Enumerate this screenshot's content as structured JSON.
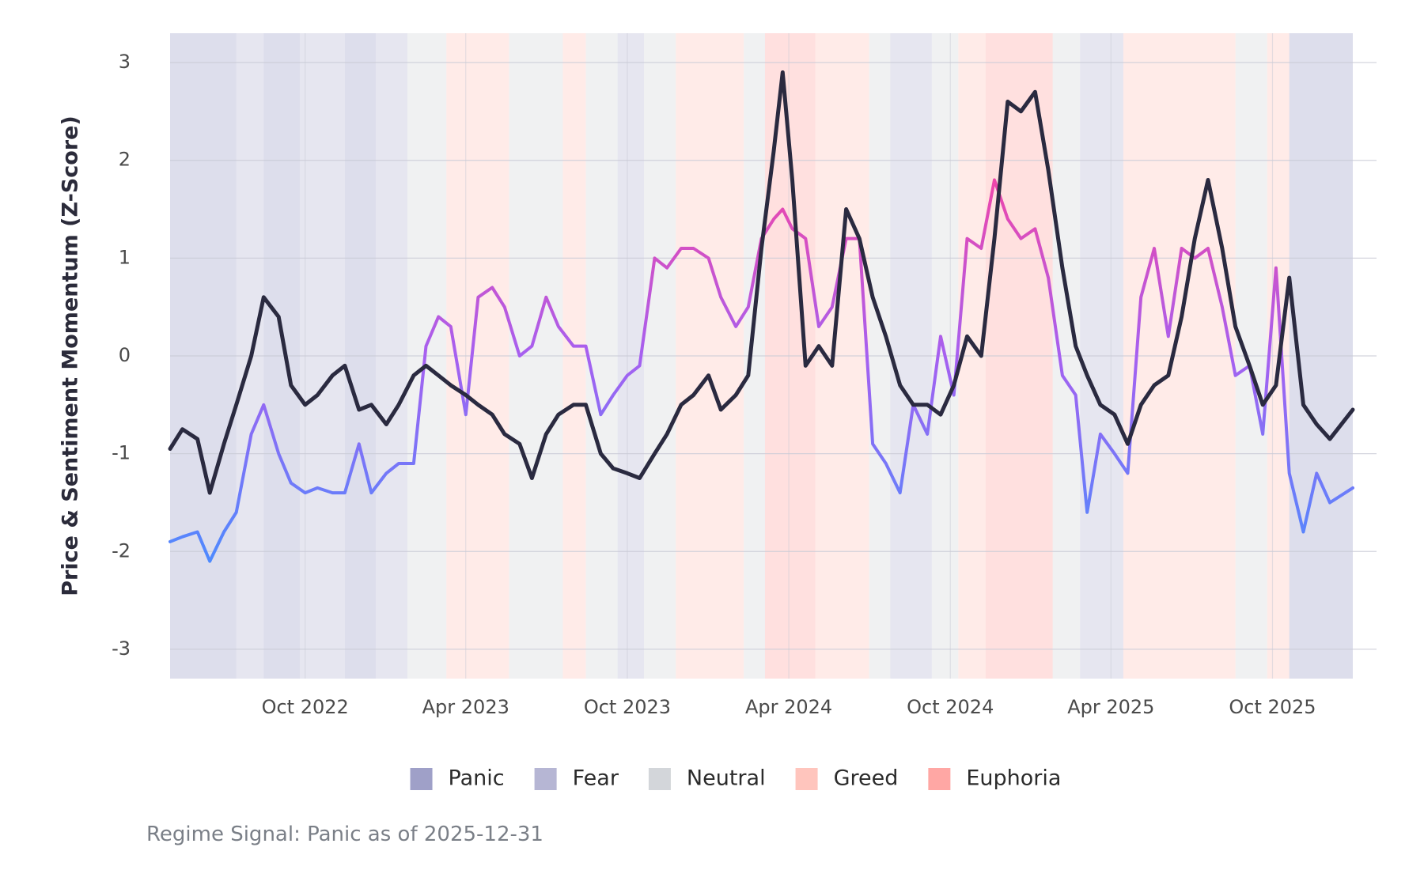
{
  "chart_data": {
    "type": "line",
    "title": "",
    "xlabel": "",
    "ylabel": "Price & Sentiment Momentum (Z-Score)",
    "caption": "Regime Signal: Panic as of 2025-12-31",
    "x_range": [
      "2022-05-01",
      "2025-12-31"
    ],
    "ylim": [
      -3.3,
      3.3
    ],
    "y_ticks": [
      -3,
      -2,
      -1,
      0,
      1,
      2,
      3
    ],
    "y_tick_labels": [
      "-3",
      "-2",
      "-1",
      "0",
      "1",
      "2",
      "3"
    ],
    "x_ticks": [
      {
        "date": "2022-10-01",
        "label": "Oct 2022"
      },
      {
        "date": "2023-04-01",
        "label": "Apr 2023"
      },
      {
        "date": "2023-10-01",
        "label": "Oct 2023"
      },
      {
        "date": "2024-04-01",
        "label": "Apr 2024"
      },
      {
        "date": "2024-10-01",
        "label": "Oct 2024"
      },
      {
        "date": "2025-04-01",
        "label": "Apr 2025"
      },
      {
        "date": "2025-10-01",
        "label": "Oct 2025"
      }
    ],
    "grid": true,
    "legend_position": "bottom",
    "regimes": [
      {
        "name": "Panic",
        "color": "#9fa0c8"
      },
      {
        "name": "Fear",
        "color": "#b6b6d4"
      },
      {
        "name": "Neutral",
        "color": "#d3d6da"
      },
      {
        "name": "Greed",
        "color": "#ffc5bd"
      },
      {
        "name": "Euphoria",
        "color": "#ffa7a4"
      }
    ],
    "regime_periods": [
      {
        "start": "2022-05-01",
        "end": "2022-07-15",
        "regime": "Panic"
      },
      {
        "start": "2022-07-15",
        "end": "2022-08-15",
        "regime": "Fear"
      },
      {
        "start": "2022-08-15",
        "end": "2022-09-25",
        "regime": "Panic"
      },
      {
        "start": "2022-09-25",
        "end": "2022-11-15",
        "regime": "Fear"
      },
      {
        "start": "2022-11-15",
        "end": "2022-12-20",
        "regime": "Panic"
      },
      {
        "start": "2022-12-20",
        "end": "2023-01-25",
        "regime": "Fear"
      },
      {
        "start": "2023-01-25",
        "end": "2023-03-10",
        "regime": "Neutral"
      },
      {
        "start": "2023-03-10",
        "end": "2023-05-20",
        "regime": "Greed"
      },
      {
        "start": "2023-05-20",
        "end": "2023-07-20",
        "regime": "Neutral"
      },
      {
        "start": "2023-07-20",
        "end": "2023-08-15",
        "regime": "Greed"
      },
      {
        "start": "2023-08-15",
        "end": "2023-09-20",
        "regime": "Neutral"
      },
      {
        "start": "2023-09-20",
        "end": "2023-10-20",
        "regime": "Fear"
      },
      {
        "start": "2023-10-20",
        "end": "2023-11-25",
        "regime": "Neutral"
      },
      {
        "start": "2023-11-25",
        "end": "2024-02-10",
        "regime": "Greed"
      },
      {
        "start": "2024-02-10",
        "end": "2024-03-05",
        "regime": "Neutral"
      },
      {
        "start": "2024-03-05",
        "end": "2024-05-01",
        "regime": "Euphoria"
      },
      {
        "start": "2024-05-01",
        "end": "2024-07-01",
        "regime": "Greed"
      },
      {
        "start": "2024-07-01",
        "end": "2024-07-25",
        "regime": "Neutral"
      },
      {
        "start": "2024-07-25",
        "end": "2024-09-10",
        "regime": "Fear"
      },
      {
        "start": "2024-09-10",
        "end": "2024-10-10",
        "regime": "Neutral"
      },
      {
        "start": "2024-10-10",
        "end": "2024-11-10",
        "regime": "Greed"
      },
      {
        "start": "2024-11-10",
        "end": "2025-01-25",
        "regime": "Euphoria"
      },
      {
        "start": "2025-01-25",
        "end": "2025-02-25",
        "regime": "Neutral"
      },
      {
        "start": "2025-02-25",
        "end": "2025-04-15",
        "regime": "Fear"
      },
      {
        "start": "2025-04-15",
        "end": "2025-08-20",
        "regime": "Greed"
      },
      {
        "start": "2025-08-20",
        "end": "2025-09-25",
        "regime": "Neutral"
      },
      {
        "start": "2025-09-25",
        "end": "2025-10-20",
        "regime": "Greed"
      },
      {
        "start": "2025-10-20",
        "end": "2025-12-31",
        "regime": "Panic"
      }
    ],
    "series": [
      {
        "color": "#2a2a40",
        "values": [
          [
            "2022-05-01",
            -0.95
          ],
          [
            "2022-05-15",
            -0.75
          ],
          [
            "2022-06-01",
            -0.85
          ],
          [
            "2022-06-15",
            -1.4
          ],
          [
            "2022-07-01",
            -0.9
          ],
          [
            "2022-07-15",
            -0.5
          ],
          [
            "2022-08-01",
            0.0
          ],
          [
            "2022-08-15",
            0.6
          ],
          [
            "2022-09-01",
            0.4
          ],
          [
            "2022-09-15",
            -0.3
          ],
          [
            "2022-10-01",
            -0.5
          ],
          [
            "2022-10-15",
            -0.4
          ],
          [
            "2022-11-01",
            -0.2
          ],
          [
            "2022-11-15",
            -0.1
          ],
          [
            "2022-12-01",
            -0.55
          ],
          [
            "2022-12-15",
            -0.5
          ],
          [
            "2023-01-01",
            -0.7
          ],
          [
            "2023-01-15",
            -0.5
          ],
          [
            "2023-02-01",
            -0.2
          ],
          [
            "2023-02-15",
            -0.1
          ],
          [
            "2023-03-01",
            -0.2
          ],
          [
            "2023-03-15",
            -0.3
          ],
          [
            "2023-04-01",
            -0.4
          ],
          [
            "2023-04-15",
            -0.5
          ],
          [
            "2023-05-01",
            -0.6
          ],
          [
            "2023-05-15",
            -0.8
          ],
          [
            "2023-06-01",
            -0.9
          ],
          [
            "2023-06-15",
            -1.25
          ],
          [
            "2023-07-01",
            -0.8
          ],
          [
            "2023-07-15",
            -0.6
          ],
          [
            "2023-08-01",
            -0.5
          ],
          [
            "2023-08-15",
            -0.5
          ],
          [
            "2023-09-01",
            -1.0
          ],
          [
            "2023-09-15",
            -1.15
          ],
          [
            "2023-10-01",
            -1.2
          ],
          [
            "2023-10-15",
            -1.25
          ],
          [
            "2023-11-01",
            -1.0
          ],
          [
            "2023-11-15",
            -0.8
          ],
          [
            "2023-12-01",
            -0.5
          ],
          [
            "2023-12-15",
            -0.4
          ],
          [
            "2024-01-01",
            -0.2
          ],
          [
            "2024-01-15",
            -0.55
          ],
          [
            "2024-02-01",
            -0.4
          ],
          [
            "2024-02-15",
            -0.2
          ],
          [
            "2024-03-01",
            1.1
          ],
          [
            "2024-03-15",
            2.1
          ],
          [
            "2024-03-25",
            2.9
          ],
          [
            "2024-04-05",
            1.8
          ],
          [
            "2024-04-20",
            -0.1
          ],
          [
            "2024-05-05",
            0.1
          ],
          [
            "2024-05-20",
            -0.1
          ],
          [
            "2024-06-05",
            1.5
          ],
          [
            "2024-06-20",
            1.2
          ],
          [
            "2024-07-05",
            0.6
          ],
          [
            "2024-07-20",
            0.2
          ],
          [
            "2024-08-05",
            -0.3
          ],
          [
            "2024-08-20",
            -0.5
          ],
          [
            "2024-09-05",
            -0.5
          ],
          [
            "2024-09-20",
            -0.6
          ],
          [
            "2024-10-05",
            -0.3
          ],
          [
            "2024-10-20",
            0.2
          ],
          [
            "2024-11-05",
            0.0
          ],
          [
            "2024-11-20",
            1.2
          ],
          [
            "2024-12-05",
            2.6
          ],
          [
            "2024-12-20",
            2.5
          ],
          [
            "2025-01-05",
            2.7
          ],
          [
            "2025-01-20",
            1.9
          ],
          [
            "2025-02-05",
            0.9
          ],
          [
            "2025-02-20",
            0.1
          ],
          [
            "2025-03-05",
            -0.2
          ],
          [
            "2025-03-20",
            -0.5
          ],
          [
            "2025-04-05",
            -0.6
          ],
          [
            "2025-04-20",
            -0.9
          ],
          [
            "2025-05-05",
            -0.5
          ],
          [
            "2025-05-20",
            -0.3
          ],
          [
            "2025-06-05",
            -0.2
          ],
          [
            "2025-06-20",
            0.4
          ],
          [
            "2025-07-05",
            1.2
          ],
          [
            "2025-07-20",
            1.8
          ],
          [
            "2025-08-05",
            1.1
          ],
          [
            "2025-08-20",
            0.3
          ],
          [
            "2025-09-05",
            -0.1
          ],
          [
            "2025-09-20",
            -0.5
          ],
          [
            "2025-10-05",
            -0.3
          ],
          [
            "2025-10-20",
            0.8
          ],
          [
            "2025-11-05",
            -0.5
          ],
          [
            "2025-11-20",
            -0.7
          ],
          [
            "2025-12-05",
            -0.85
          ],
          [
            "2025-12-31",
            -0.55
          ]
        ]
      },
      {
        "color": "#c050e0",
        "values": [
          [
            "2022-05-01",
            -1.9
          ],
          [
            "2022-05-15",
            -1.85
          ],
          [
            "2022-06-01",
            -1.8
          ],
          [
            "2022-06-15",
            -2.1
          ],
          [
            "2022-07-01",
            -1.8
          ],
          [
            "2022-07-15",
            -1.6
          ],
          [
            "2022-08-01",
            -0.8
          ],
          [
            "2022-08-15",
            -0.5
          ],
          [
            "2022-09-01",
            -1.0
          ],
          [
            "2022-09-15",
            -1.3
          ],
          [
            "2022-10-01",
            -1.4
          ],
          [
            "2022-10-15",
            -1.35
          ],
          [
            "2022-11-01",
            -1.4
          ],
          [
            "2022-11-15",
            -1.4
          ],
          [
            "2022-12-01",
            -0.9
          ],
          [
            "2022-12-15",
            -1.4
          ],
          [
            "2023-01-01",
            -1.2
          ],
          [
            "2023-01-15",
            -1.1
          ],
          [
            "2023-02-01",
            -1.1
          ],
          [
            "2023-02-15",
            0.1
          ],
          [
            "2023-03-01",
            0.4
          ],
          [
            "2023-03-15",
            0.3
          ],
          [
            "2023-04-01",
            -0.6
          ],
          [
            "2023-04-15",
            0.6
          ],
          [
            "2023-05-01",
            0.7
          ],
          [
            "2023-05-15",
            0.5
          ],
          [
            "2023-06-01",
            0.0
          ],
          [
            "2023-06-15",
            0.1
          ],
          [
            "2023-07-01",
            0.6
          ],
          [
            "2023-07-15",
            0.3
          ],
          [
            "2023-08-01",
            0.1
          ],
          [
            "2023-08-15",
            0.1
          ],
          [
            "2023-09-01",
            -0.6
          ],
          [
            "2023-09-15",
            -0.4
          ],
          [
            "2023-10-01",
            -0.2
          ],
          [
            "2023-10-15",
            -0.1
          ],
          [
            "2023-11-01",
            1.0
          ],
          [
            "2023-11-15",
            0.9
          ],
          [
            "2023-12-01",
            1.1
          ],
          [
            "2023-12-15",
            1.1
          ],
          [
            "2024-01-01",
            1.0
          ],
          [
            "2024-01-15",
            0.6
          ],
          [
            "2024-02-01",
            0.3
          ],
          [
            "2024-02-15",
            0.5
          ],
          [
            "2024-03-01",
            1.2
          ],
          [
            "2024-03-15",
            1.4
          ],
          [
            "2024-03-25",
            1.5
          ],
          [
            "2024-04-05",
            1.3
          ],
          [
            "2024-04-20",
            1.2
          ],
          [
            "2024-05-05",
            0.3
          ],
          [
            "2024-05-20",
            0.5
          ],
          [
            "2024-06-05",
            1.2
          ],
          [
            "2024-06-20",
            1.2
          ],
          [
            "2024-07-05",
            -0.9
          ],
          [
            "2024-07-20",
            -1.1
          ],
          [
            "2024-08-05",
            -1.4
          ],
          [
            "2024-08-20",
            -0.5
          ],
          [
            "2024-09-05",
            -0.8
          ],
          [
            "2024-09-20",
            0.2
          ],
          [
            "2024-10-05",
            -0.4
          ],
          [
            "2024-10-20",
            1.2
          ],
          [
            "2024-11-05",
            1.1
          ],
          [
            "2024-11-20",
            1.8
          ],
          [
            "2024-12-05",
            1.4
          ],
          [
            "2024-12-20",
            1.2
          ],
          [
            "2025-01-05",
            1.3
          ],
          [
            "2025-01-20",
            0.8
          ],
          [
            "2025-02-05",
            -0.2
          ],
          [
            "2025-02-20",
            -0.4
          ],
          [
            "2025-03-05",
            -1.6
          ],
          [
            "2025-03-20",
            -0.8
          ],
          [
            "2025-04-05",
            -1.0
          ],
          [
            "2025-04-20",
            -1.2
          ],
          [
            "2025-05-05",
            0.6
          ],
          [
            "2025-05-20",
            1.1
          ],
          [
            "2025-06-05",
            0.2
          ],
          [
            "2025-06-20",
            1.1
          ],
          [
            "2025-07-05",
            1.0
          ],
          [
            "2025-07-20",
            1.1
          ],
          [
            "2025-08-05",
            0.5
          ],
          [
            "2025-08-20",
            -0.2
          ],
          [
            "2025-09-05",
            -0.1
          ],
          [
            "2025-09-20",
            -0.8
          ],
          [
            "2025-10-05",
            0.9
          ],
          [
            "2025-10-20",
            -1.2
          ],
          [
            "2025-11-05",
            -1.8
          ],
          [
            "2025-11-20",
            -1.2
          ],
          [
            "2025-12-05",
            -1.5
          ],
          [
            "2025-12-31",
            -1.35
          ]
        ]
      }
    ]
  }
}
